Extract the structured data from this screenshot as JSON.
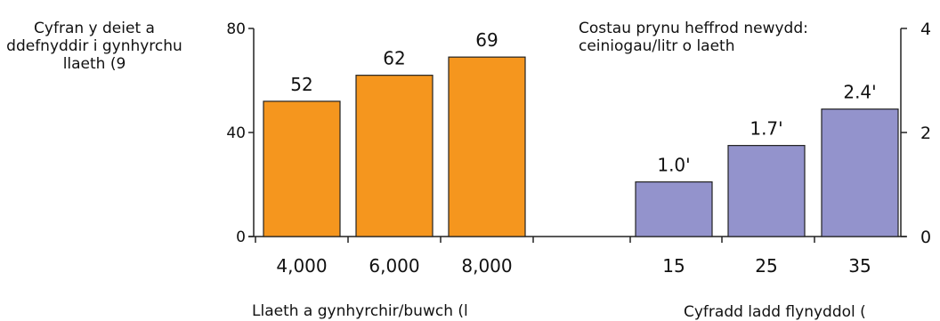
{
  "chart_data": [
    {
      "type": "bar",
      "ylabel": "Cyfran y deiet a ddefnyddir i gynhyrchu llaeth (9",
      "xlabel": "Llaeth a gynhyrchir/buwch  (l",
      "categories": [
        "4,000",
        "6,000",
        "8,000"
      ],
      "values": [
        52,
        62,
        69
      ],
      "value_labels": [
        "52",
        "62",
        "69"
      ],
      "ylim": [
        0,
        80
      ],
      "yticks": [
        "0",
        "40",
        "80"
      ],
      "color": "#f5961e",
      "grid": false
    },
    {
      "type": "bar",
      "ylabel": "Costau prynu heffrod newydd: ceiniogau/litr o laeth",
      "xlabel": "Cyfradd ladd flynyddol (",
      "categories": [
        "15",
        "25",
        "35"
      ],
      "values": [
        1.05,
        1.75,
        2.45
      ],
      "value_labels": [
        "1.0&#x301;",
        "1.7&#x301;",
        "2.4&#x301;"
      ],
      "display_values": [
        "1.0'",
        "1.7'",
        "2.4'"
      ],
      "ylim": [
        0,
        4
      ],
      "yticks": [
        "0",
        "2",
        "4"
      ],
      "color": "#9393cc",
      "grid": false
    }
  ]
}
